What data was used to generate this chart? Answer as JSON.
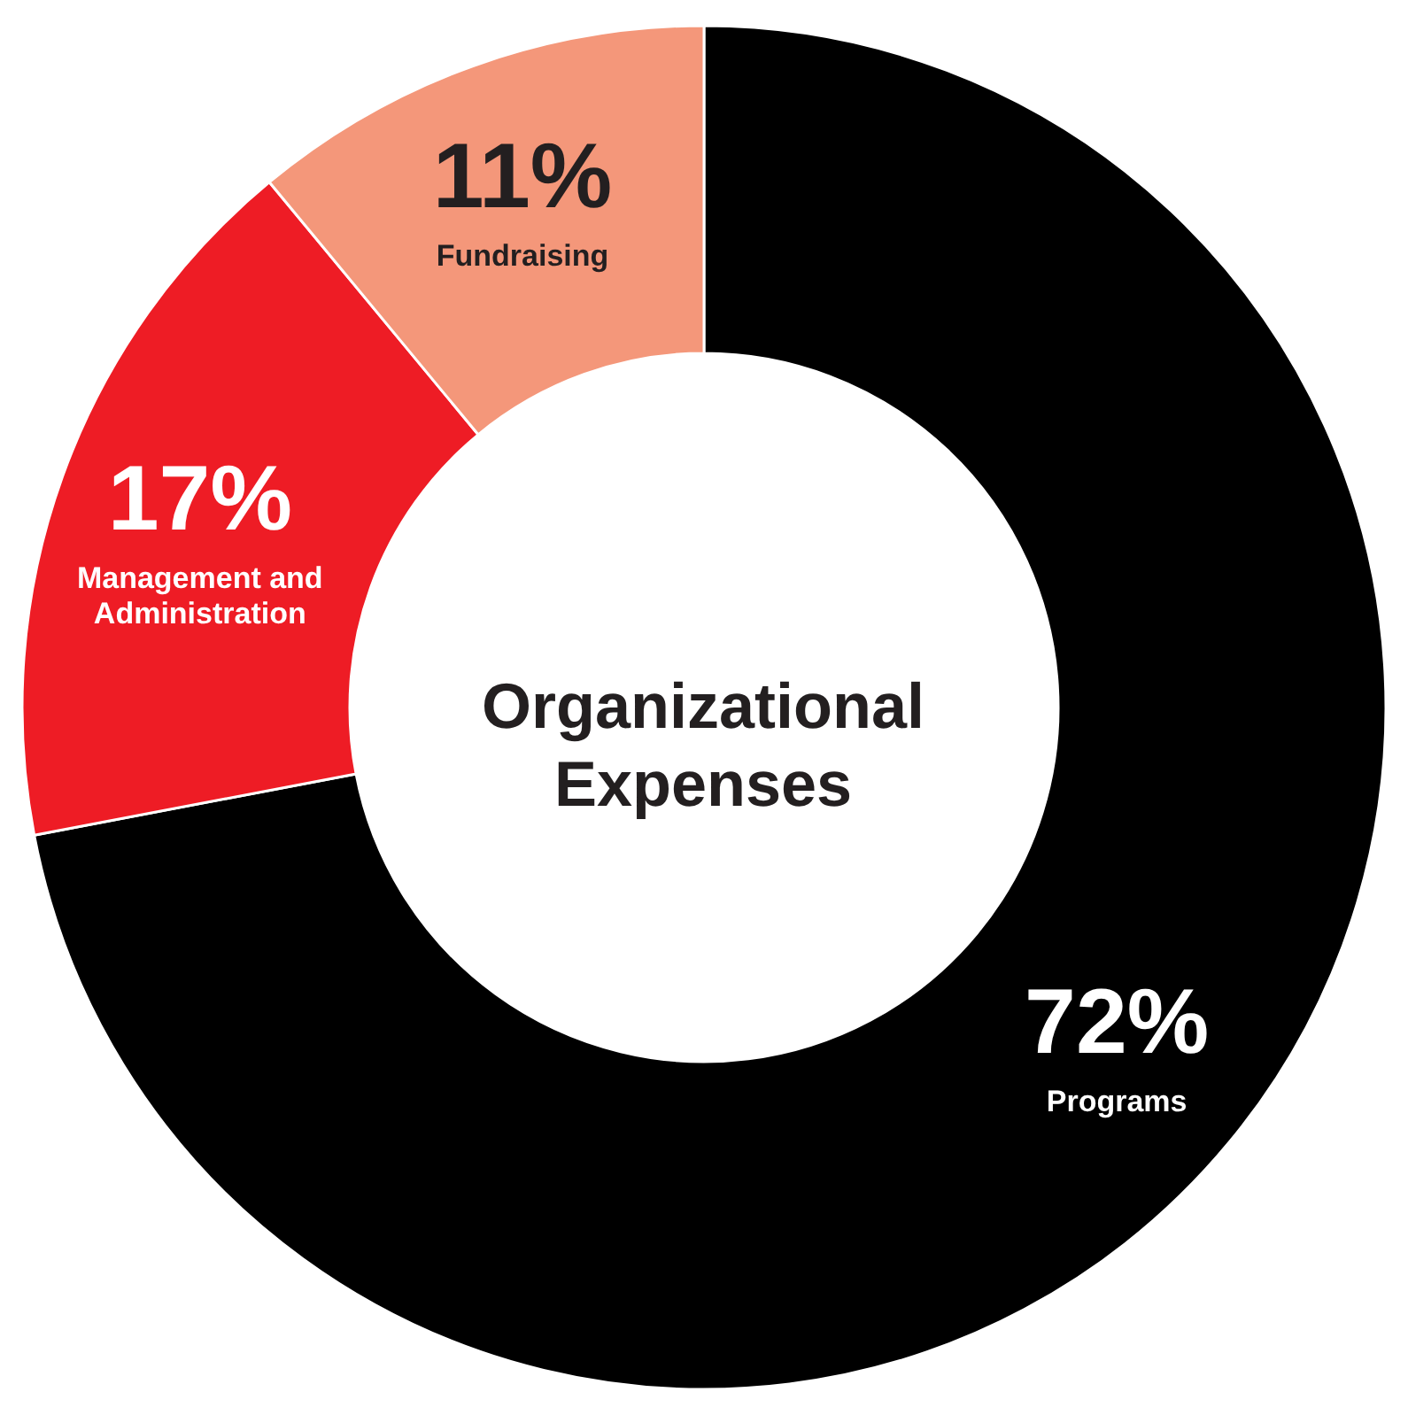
{
  "chart_data": {
    "type": "donut",
    "title": "Organizational Expenses",
    "categories": [
      "Programs",
      "Management and Administration",
      "Fundraising"
    ],
    "values": [
      72,
      17,
      11
    ],
    "colors": [
      "#000000",
      "#ee1c25",
      "#f4977a"
    ],
    "value_labels": [
      "72%",
      "17%",
      "11%"
    ]
  }
}
